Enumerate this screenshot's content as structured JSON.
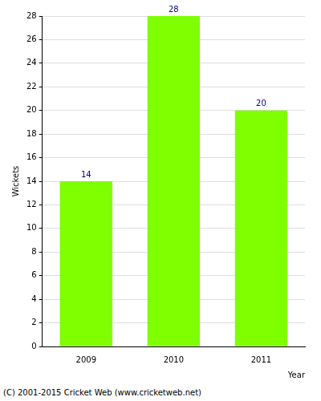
{
  "chart_data": {
    "type": "bar",
    "categories": [
      "2009",
      "2010",
      "2011"
    ],
    "values": [
      14,
      28,
      20
    ],
    "color": "#7fff00",
    "x_label": "Year",
    "y_label": "Wickets",
    "ylim": [
      0,
      28
    ],
    "yticks": [
      0,
      2,
      4,
      6,
      8,
      10,
      12,
      14,
      16,
      18,
      20,
      22,
      24,
      26,
      28
    ],
    "grid": true,
    "data_labels": true,
    "annotations": [
      "(C) 2001-2015 Cricket Web (www.cricketweb.net)"
    ]
  }
}
